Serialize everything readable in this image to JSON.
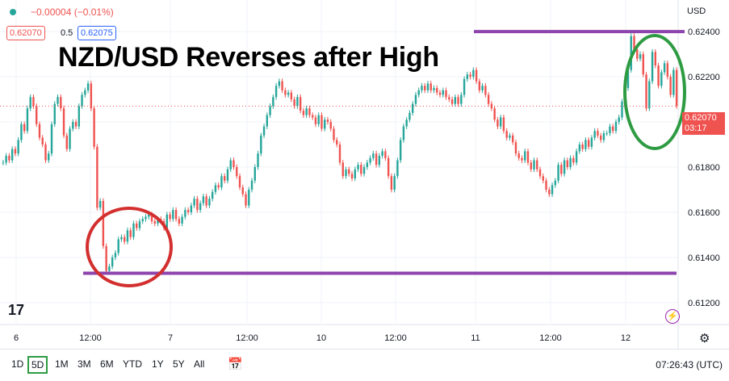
{
  "header": {
    "change": "−0.00004 (−0.01%)",
    "bid": "0.62070",
    "spread": "0.5",
    "ask": "0.62075",
    "currency": "USD"
  },
  "headline": "NZD/USD Reverses after High",
  "price_label": {
    "value": "0.62070",
    "countdown": "03:17"
  },
  "timeframes": [
    "1D",
    "5D",
    "1M",
    "3M",
    "6M",
    "YTD",
    "1Y",
    "5Y",
    "All"
  ],
  "active_timeframe": "5D",
  "clock": "07:26:43 (UTC)",
  "colors": {
    "up": "#26a69a",
    "down": "#ef5350",
    "purple": "#8e44ad",
    "green_circle": "#2e9b43",
    "red_circle": "#d32f2f"
  },
  "chart_data": {
    "type": "line",
    "title": "NZD/USD Reverses after High",
    "y_ticks": [
      "0.62400",
      "0.62200",
      "0.62000",
      "0.61800",
      "0.61600",
      "0.61400",
      "0.61200"
    ],
    "x_ticks": [
      "6",
      "12:00",
      "7",
      "12:00",
      "10",
      "12:00",
      "11",
      "12:00",
      "12"
    ],
    "ylim": [
      0.6111,
      0.6254
    ],
    "series": [
      {
        "values": [
          0.6182,
          0.6185,
          0.6183,
          0.6188,
          0.6186,
          0.6192,
          0.6199,
          0.6196,
          0.6206,
          0.6211,
          0.6207,
          0.6199,
          0.6193,
          0.619,
          0.6183,
          0.6186,
          0.6199,
          0.6208,
          0.6211,
          0.6206,
          0.6194,
          0.6188,
          0.6197,
          0.62,
          0.6198,
          0.6207,
          0.6212,
          0.6214,
          0.6217,
          0.6206,
          0.6189,
          0.6162,
          0.6165,
          0.6145,
          0.6134,
          0.6136,
          0.614,
          0.6142,
          0.6148,
          0.6149,
          0.6147,
          0.6152,
          0.6149,
          0.6155,
          0.6153,
          0.6156,
          0.6157,
          0.6158,
          0.6159,
          0.6156,
          0.6155,
          0.6157,
          0.6156,
          0.6153,
          0.6159,
          0.6157,
          0.6161,
          0.6157,
          0.6155,
          0.6158,
          0.6161,
          0.616,
          0.6163,
          0.6166,
          0.6161,
          0.6164,
          0.6167,
          0.6163,
          0.6166,
          0.6169,
          0.6172,
          0.6171,
          0.6176,
          0.6174,
          0.6179,
          0.6183,
          0.618,
          0.6176,
          0.6171,
          0.6168,
          0.6163,
          0.617,
          0.6174,
          0.618,
          0.6186,
          0.6194,
          0.6198,
          0.6203,
          0.6207,
          0.6211,
          0.6216,
          0.6218,
          0.6214,
          0.6212,
          0.6213,
          0.621,
          0.6207,
          0.6211,
          0.6205,
          0.6203,
          0.6206,
          0.6203,
          0.6202,
          0.6199,
          0.6203,
          0.6197,
          0.6201,
          0.62,
          0.6197,
          0.6192,
          0.619,
          0.6182,
          0.6176,
          0.6179,
          0.6177,
          0.6175,
          0.6179,
          0.6181,
          0.6177,
          0.618,
          0.6182,
          0.6184,
          0.6186,
          0.6181,
          0.6185,
          0.6187,
          0.6184,
          0.6176,
          0.617,
          0.6176,
          0.6183,
          0.6192,
          0.6198,
          0.6201,
          0.6204,
          0.6208,
          0.6212,
          0.6214,
          0.6216,
          0.6214,
          0.6217,
          0.6214,
          0.6215,
          0.6213,
          0.6212,
          0.6214,
          0.6211,
          0.621,
          0.6208,
          0.6211,
          0.6208,
          0.6212,
          0.6219,
          0.6221,
          0.622,
          0.6223,
          0.6218,
          0.6214,
          0.6216,
          0.6212,
          0.6208,
          0.6206,
          0.6201,
          0.6198,
          0.6202,
          0.6196,
          0.6193,
          0.6194,
          0.6191,
          0.6186,
          0.6184,
          0.6183,
          0.6187,
          0.6182,
          0.6179,
          0.6183,
          0.6179,
          0.6176,
          0.6174,
          0.617,
          0.6168,
          0.6172,
          0.6174,
          0.6181,
          0.6177,
          0.6183,
          0.618,
          0.6184,
          0.6182,
          0.6187,
          0.619,
          0.6188,
          0.6192,
          0.6189,
          0.6193,
          0.6196,
          0.6194,
          0.6192,
          0.6195,
          0.6195,
          0.6198,
          0.6196,
          0.62,
          0.6202,
          0.6209,
          0.6215,
          0.6223,
          0.6238,
          0.6232,
          0.6228,
          0.623,
          0.6221,
          0.6206,
          0.6218,
          0.6231,
          0.6225,
          0.6216,
          0.6222,
          0.6226,
          0.622,
          0.6212,
          0.6223,
          0.6207
        ]
      }
    ]
  },
  "annotations": {
    "resistance": 0.624,
    "support": 0.6133
  }
}
